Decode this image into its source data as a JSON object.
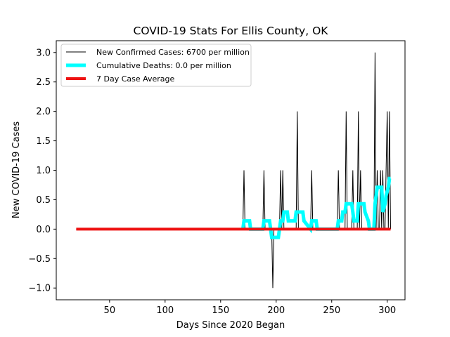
{
  "chart_data": {
    "type": "line",
    "title": "COVID-19 Stats For Ellis County, OK",
    "xlabel": "Days Since 2020 Began",
    "ylabel": "New COVID-19 Cases",
    "xlim": [
      2,
      316
    ],
    "ylim": [
      -1.2,
      3.2
    ],
    "xticks": [
      50,
      100,
      150,
      200,
      250,
      300
    ],
    "yticks": [
      -1.0,
      -0.5,
      0.0,
      0.5,
      1.0,
      1.5,
      2.0,
      2.5,
      3.0
    ],
    "ytick_labels": [
      "−1.0",
      "−0.5",
      "0.0",
      "0.5",
      "1.0",
      "1.5",
      "2.0",
      "2.5",
      "3.0"
    ],
    "grid": false,
    "legend_position": "top-left",
    "series": [
      {
        "name": "New Confirmed Cases: 6700 per million",
        "color": "#000000",
        "width": 1,
        "x": [
          20,
          170,
          171,
          172,
          188,
          189,
          190,
          196,
          197,
          198,
          203,
          204,
          205,
          206,
          207,
          208,
          218,
          219,
          220,
          231,
          232,
          233,
          255,
          256,
          257,
          262,
          263,
          264,
          268,
          269,
          270,
          273,
          274,
          275,
          276,
          277,
          278,
          288,
          289,
          290,
          291,
          292,
          293,
          294,
          295,
          296,
          297,
          298,
          299,
          300,
          301,
          302,
          303
        ],
        "y": [
          0,
          0,
          1,
          0,
          0,
          1,
          0,
          0,
          -1,
          0,
          0,
          1,
          0,
          1,
          0,
          0,
          0,
          2,
          0,
          0,
          1,
          0,
          0,
          1,
          0,
          0,
          2,
          0,
          0,
          1,
          0,
          0,
          2,
          0,
          1,
          0,
          0,
          0,
          3,
          0,
          1,
          0,
          0,
          1,
          0,
          1,
          0,
          0,
          1,
          2,
          0,
          2,
          0
        ]
      },
      {
        "name": "Cumulative Deaths: 0.0 per million",
        "color": "#00ffff",
        "width": 5,
        "x": [
          170,
          171,
          176,
          177,
          188,
          189,
          194,
          195,
          196,
          197,
          202,
          203,
          204,
          206,
          207,
          210,
          211,
          217,
          218,
          224,
          225,
          231,
          232,
          236,
          237,
          255,
          256,
          259,
          260,
          262,
          263,
          268,
          269,
          270,
          273,
          274,
          279,
          280,
          283,
          284,
          288,
          289,
          290,
          291,
          295,
          296,
          298,
          299,
          301,
          302,
          303
        ],
        "y": [
          0,
          0.14,
          0.14,
          0,
          0,
          0.14,
          0.14,
          0,
          -0.14,
          -0.14,
          -0.14,
          0,
          0.14,
          0.14,
          0.29,
          0.29,
          0.14,
          0.14,
          0.29,
          0.29,
          0.14,
          0,
          0.14,
          0.14,
          0,
          0,
          0.14,
          0.14,
          0.29,
          0.29,
          0.43,
          0.43,
          0.29,
          0.14,
          0.14,
          0.43,
          0.43,
          0.29,
          0.14,
          0,
          0,
          0.43,
          0.57,
          0.71,
          0.71,
          0.29,
          0.43,
          0.57,
          0.71,
          0.86,
          0.86
        ]
      },
      {
        "name": "7 Day Case Average",
        "color": "#ee1111",
        "width": 4,
        "x": [
          20,
          303
        ],
        "y": [
          0,
          0
        ]
      }
    ]
  }
}
